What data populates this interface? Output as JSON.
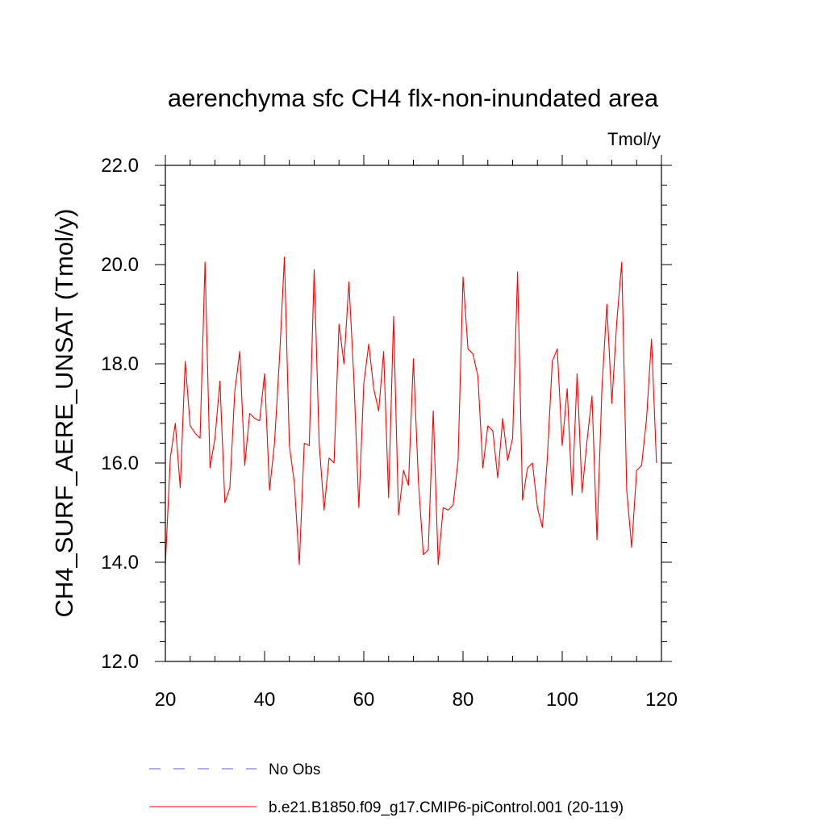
{
  "chart_data": {
    "type": "line",
    "title": "aerenchyma sfc CH4 flx-non-inundated area",
    "units": "Tmol/y",
    "ylabel": "CH4_SURF_AERE_UNSAT  (Tmol/y)",
    "xlabel": "",
    "xlim": [
      20,
      120
    ],
    "ylim": [
      12.0,
      22.0
    ],
    "xticks": [
      20,
      40,
      60,
      80,
      100,
      120
    ],
    "yticks": [
      "12.0",
      "14.0",
      "16.0",
      "18.0",
      "20.0",
      "22.0"
    ],
    "grid": false,
    "legend_placement": "bottom",
    "series": [
      {
        "name": "No Obs",
        "color": "#6a5acd",
        "dash": "dashed",
        "values": []
      },
      {
        "name": "b.e21.B1850.f09_g17.CMIP6-piControl.001 (20-119)",
        "color": "#ff0000",
        "dash": "solid",
        "x": [
          20,
          21,
          22,
          23,
          24,
          25,
          26,
          27,
          28,
          29,
          30,
          31,
          32,
          33,
          34,
          35,
          36,
          37,
          38,
          39,
          40,
          41,
          42,
          43,
          44,
          45,
          46,
          47,
          48,
          49,
          50,
          51,
          52,
          53,
          54,
          55,
          56,
          57,
          58,
          59,
          60,
          61,
          62,
          63,
          64,
          65,
          66,
          67,
          68,
          69,
          70,
          71,
          72,
          73,
          74,
          75,
          76,
          77,
          78,
          79,
          80,
          81,
          82,
          83,
          84,
          85,
          86,
          87,
          88,
          89,
          90,
          91,
          92,
          93,
          94,
          95,
          96,
          97,
          98,
          99,
          100,
          101,
          102,
          103,
          104,
          105,
          106,
          107,
          108,
          109,
          110,
          111,
          112,
          113,
          114,
          115,
          116,
          117,
          118,
          119
        ],
        "values": [
          13.95,
          16.1,
          16.8,
          15.5,
          18.05,
          16.75,
          16.6,
          16.5,
          20.05,
          15.9,
          16.5,
          17.65,
          15.2,
          15.5,
          17.45,
          18.25,
          15.95,
          17.0,
          16.9,
          16.85,
          17.8,
          15.45,
          16.4,
          18.1,
          20.15,
          16.35,
          15.6,
          13.95,
          16.4,
          16.35,
          19.9,
          16.4,
          15.05,
          16.1,
          16.0,
          18.8,
          18.0,
          19.65,
          17.7,
          15.1,
          17.6,
          18.4,
          17.5,
          17.05,
          18.25,
          15.3,
          18.95,
          14.95,
          15.85,
          15.55,
          18.1,
          15.65,
          14.15,
          14.25,
          17.05,
          13.95,
          15.1,
          15.05,
          15.15,
          16.05,
          19.75,
          18.3,
          18.2,
          17.75,
          15.9,
          16.75,
          16.65,
          15.7,
          16.9,
          16.05,
          16.5,
          19.85,
          15.25,
          15.9,
          16.0,
          15.1,
          14.7,
          16.1,
          18.05,
          18.3,
          16.35,
          17.5,
          15.35,
          17.8,
          15.4,
          16.45,
          17.35,
          14.45,
          17.5,
          19.2,
          17.2,
          18.85,
          20.05,
          15.45,
          14.3,
          15.85,
          15.95,
          16.9,
          18.5,
          16.0
        ]
      }
    ]
  }
}
